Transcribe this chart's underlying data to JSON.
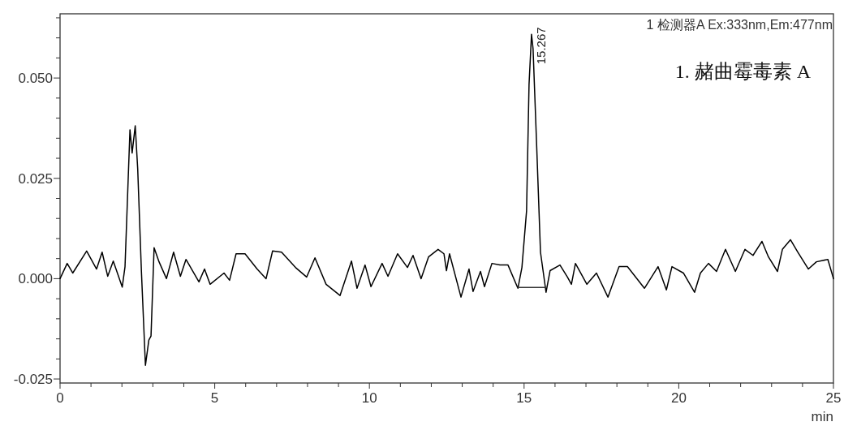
{
  "chart_data": {
    "type": "line",
    "xlabel": "min",
    "xlim": [
      0,
      25
    ],
    "ylim": [
      -0.026,
      0.066
    ],
    "xticks": [
      0,
      {
        "value": 1,
        "label": null
      },
      {
        "value": 2,
        "label": null
      },
      {
        "value": 3,
        "label": null
      },
      {
        "value": 4,
        "label": null
      },
      5,
      {
        "value": 6,
        "label": null
      },
      {
        "value": 7,
        "label": null
      },
      {
        "value": 8,
        "label": null
      },
      {
        "value": 9,
        "label": null
      },
      10,
      {
        "value": 11,
        "label": null
      },
      {
        "value": 12,
        "label": null
      },
      {
        "value": 13,
        "label": null
      },
      {
        "value": 14,
        "label": null
      },
      15,
      {
        "value": 16,
        "label": null
      },
      {
        "value": 17,
        "label": null
      },
      {
        "value": 18,
        "label": null
      },
      {
        "value": 19,
        "label": null
      },
      20,
      {
        "value": 21,
        "label": null
      },
      {
        "value": 22,
        "label": null
      },
      {
        "value": 23,
        "label": null
      },
      {
        "value": 24,
        "label": null
      },
      25
    ],
    "yticks": [
      {
        "value": -0.025,
        "label": "-0.025"
      },
      {
        "value": -0.02,
        "label": null
      },
      {
        "value": -0.015,
        "label": null
      },
      {
        "value": -0.01,
        "label": null
      },
      {
        "value": -0.005,
        "label": null
      },
      {
        "value": 0,
        "label": "0.000"
      },
      {
        "value": 0.005,
        "label": null
      },
      {
        "value": 0.01,
        "label": null
      },
      {
        "value": 0.015,
        "label": null
      },
      {
        "value": 0.02,
        "label": null
      },
      {
        "value": 0.025,
        "label": "0.025"
      },
      {
        "value": 0.03,
        "label": null
      },
      {
        "value": 0.035,
        "label": null
      },
      {
        "value": 0.04,
        "label": null
      },
      {
        "value": 0.045,
        "label": null
      },
      {
        "value": 0.05,
        "label": "0.050"
      },
      {
        "value": 0.055,
        "label": null
      },
      {
        "value": 0.06,
        "label": null
      },
      {
        "value": 0.065,
        "label": null
      }
    ],
    "series": [
      {
        "color": "#000000",
        "x": [
          0,
          0.23,
          0.41,
          0.86,
          1.18,
          1.36,
          1.54,
          1.72,
          2.01,
          2.1,
          2.26,
          2.33,
          2.43,
          2.51,
          2.63,
          2.76,
          2.87,
          2.94,
          3.04,
          3.2,
          3.44,
          3.67,
          3.89,
          4.07,
          4.49,
          4.67,
          4.85,
          5.3,
          5.48,
          5.69,
          5.98,
          6.37,
          6.66,
          6.87,
          7.16,
          7.61,
          7.97,
          8.24,
          8.6,
          9.05,
          9.42,
          9.6,
          9.86,
          10.05,
          10.41,
          10.6,
          10.91,
          11.23,
          11.41,
          11.67,
          11.91,
          12.22,
          12.41,
          12.49,
          12.59,
          12.96,
          13.22,
          13.35,
          13.59,
          13.72,
          13.96,
          14.22,
          14.48,
          14.8,
          14.93,
          15.08,
          15.16,
          15.24,
          15.29,
          15.4,
          15.53,
          15.71,
          15.84,
          16.16,
          16.4,
          16.53,
          16.66,
          17.03,
          17.34,
          17.71,
          18.07,
          18.34,
          18.89,
          19.33,
          19.6,
          19.78,
          20.15,
          20.51,
          20.7,
          20.96,
          21.22,
          21.51,
          21.83,
          22.14,
          22.4,
          22.69,
          22.9,
          23.19,
          23.35,
          23.61,
          23.85,
          24.19,
          24.45,
          24.82,
          25
        ],
        "values": [
          0,
          0.0038,
          0.0014,
          0.0069,
          0.0024,
          0.0066,
          0.0006,
          0.0044,
          -0.0021,
          0.003,
          0.0371,
          0.0313,
          0.0381,
          0.0274,
          0.0018,
          -0.0216,
          -0.0153,
          -0.0143,
          0.0077,
          0.0042,
          0,
          0.0066,
          0.0006,
          0.0048,
          -0.0008,
          0.0024,
          -0.0014,
          0.0014,
          -0.0004,
          0.0062,
          0.0062,
          0.0024,
          0,
          0.0069,
          0.0066,
          0.0028,
          0.0004,
          0.0052,
          -0.0014,
          -0.0042,
          0.0044,
          -0.0024,
          0.0034,
          -0.002,
          0.0038,
          0.0006,
          0.0062,
          0.0028,
          0.0058,
          0,
          0.0054,
          0.0073,
          0.0062,
          0.002,
          0.0062,
          -0.0046,
          0.0024,
          -0.0032,
          0.0018,
          -0.002,
          0.0038,
          0.0034,
          0.0034,
          -0.0024,
          0.0028,
          0.0169,
          0.0484,
          0.0609,
          0.0573,
          0.0345,
          0.0066,
          -0.0034,
          0.002,
          0.0034,
          0.0004,
          -0.0014,
          0.0038,
          -0.0014,
          0.0014,
          -0.0046,
          0.003,
          0.003,
          -0.0024,
          0.003,
          -0.0028,
          0.003,
          0.0014,
          -0.0034,
          0.0014,
          0.0038,
          0.0018,
          0.0073,
          0.0018,
          0.0073,
          0.0058,
          0.0093,
          0.0054,
          0.0018,
          0.0073,
          0.0097,
          0.0066,
          0.0024,
          0.0042,
          0.0048,
          0
        ]
      },
      {
        "color": "#333333",
        "x": [
          14.8,
          15.71
        ],
        "values": [
          -0.0022,
          -0.0022
        ]
      }
    ],
    "annotations": [
      "1 检测器A Ex:333nm,Em:477nm",
      "1. 赭曲霉毒素 A",
      {
        "text": "15.267",
        "x": 15.267,
        "y": 0.0609
      }
    ]
  }
}
